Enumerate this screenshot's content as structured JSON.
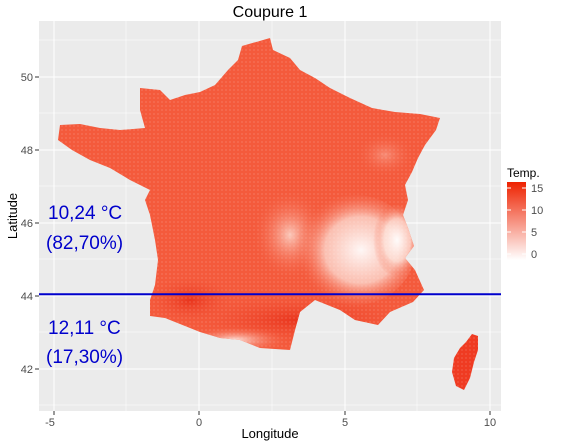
{
  "title": "Coupure 1",
  "xlabel": "Longitude",
  "ylabel": "Latitude",
  "x_ticks": [
    "-5",
    "0",
    "5",
    "10"
  ],
  "y_ticks": [
    "42",
    "44",
    "46",
    "48",
    "50"
  ],
  "legend": {
    "title": "Temp.",
    "labels": [
      "15",
      "10",
      "5",
      "0"
    ],
    "color_low": "#ffffff",
    "color_high": "#ee2200"
  },
  "cut_line": {
    "latitude": 44.05,
    "color": "#0000cc"
  },
  "annotations": {
    "north_temp": "10,24 °C",
    "north_pct": "(82,70%)",
    "south_temp": "12,11 °C",
    "south_pct": "(17,30%)"
  },
  "colors": {
    "panel_bg": "#ebebeb",
    "grid": "#ffffff",
    "map_fill": "#f45a3c",
    "map_dark": "#ef3b22",
    "alps_light": "#fde5df"
  }
}
